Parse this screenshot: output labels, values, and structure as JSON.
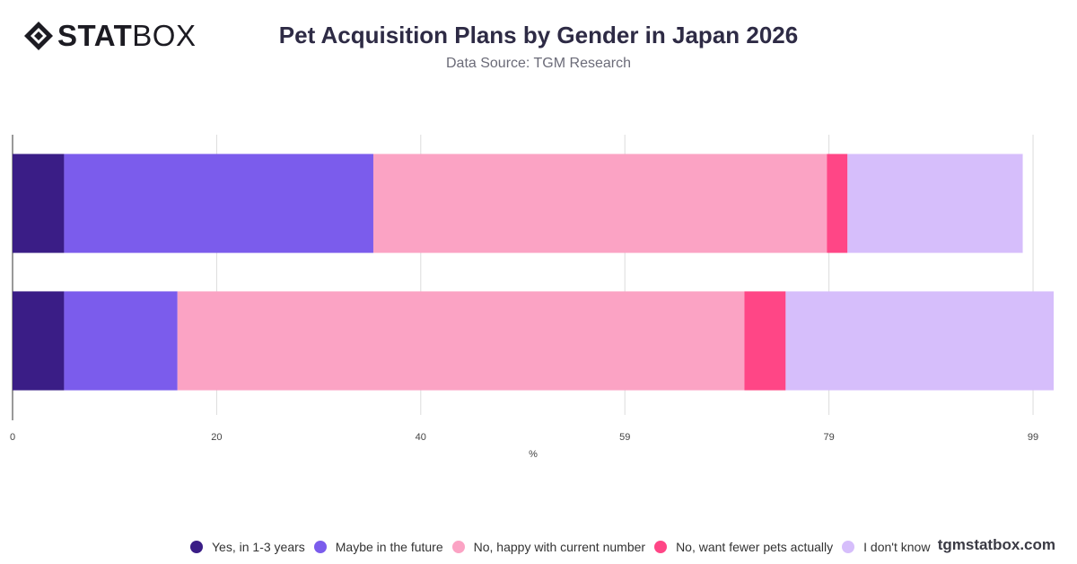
{
  "header": {
    "logo_bold": "STAT",
    "logo_light": "BOX",
    "title": "Pet Acquisition Plans by Gender in Japan 2026",
    "subtitle": "Data Source: TGM Research"
  },
  "footer": {
    "brand": "tgmstatbox.com"
  },
  "chart_data": {
    "type": "bar",
    "orientation": "horizontal",
    "stacked": true,
    "title": "Pet Acquisition Plans by Gender in Japan 2026",
    "subtitle": "Data Source: TGM Research",
    "xlabel": "%",
    "ylabel": "",
    "xlim": [
      0,
      101
    ],
    "x_ticks": [
      "0",
      "20",
      "40",
      "59",
      "79",
      "99"
    ],
    "x_tick_values": [
      0,
      19.8,
      39.6,
      59.4,
      79.2,
      99
    ],
    "categories": [
      "",
      ""
    ],
    "grid": true,
    "legend_position": "bottom",
    "series": [
      {
        "name": "Yes, in 1-3 years",
        "color": "#3a1d86",
        "values": [
          5,
          5
        ]
      },
      {
        "name": "Maybe in the future",
        "color": "#7b5cec",
        "values": [
          30,
          11
        ]
      },
      {
        "name": "No, happy with current number",
        "color": "#fba3c4",
        "values": [
          44,
          55
        ]
      },
      {
        "name": "No, want fewer pets actually",
        "color": "#ff4686",
        "values": [
          2,
          4
        ]
      },
      {
        "name": "I don't know",
        "color": "#d6befb",
        "values": [
          17,
          26
        ]
      }
    ]
  }
}
